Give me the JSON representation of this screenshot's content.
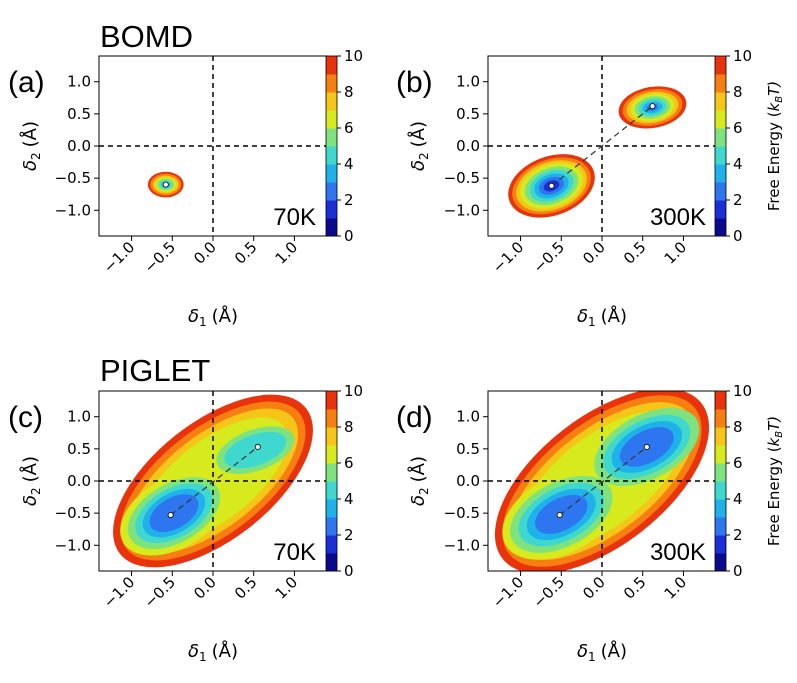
{
  "section_labels": [
    "BOMD",
    "PIGLET"
  ],
  "colorbar": {
    "label": "Free Energy (k_B T)",
    "label_main": "Free Energy (",
    "label_k": "k",
    "label_sub": "B",
    "label_T": "T)",
    "min": 0,
    "max": 10,
    "ticks": [
      "0",
      "2",
      "4",
      "6",
      "8",
      "10"
    ],
    "colors": [
      "#0a0a8e",
      "#1b2fd8",
      "#2e76f0",
      "#1fb2ea",
      "#3fd8cf",
      "#7ee37f",
      "#d6ea1e",
      "#f5c518",
      "#f77f12",
      "#e8330c",
      "#a80f0f"
    ]
  },
  "chart_data": [
    {
      "type": "heatmap",
      "panel": "(a)",
      "temperature": "70K",
      "xlabel_sym": "δ",
      "xlabel_sub": "1",
      "xlabel_unit": "(Å)",
      "ylabel_sym": "δ",
      "ylabel_sub": "2",
      "ylabel_unit": "(Å)",
      "xlim": [
        -1.4,
        1.4
      ],
      "ylim": [
        -1.4,
        1.4
      ],
      "xticks": [
        "−1.0",
        "−0.5",
        "0.0",
        "0.5",
        "1.0"
      ],
      "yticks": [
        "1.0",
        "0.5",
        "0.0",
        "−0.5",
        "−1.0"
      ],
      "minima": [
        [
          -0.58,
          -0.6
        ]
      ],
      "has_colorbar_label": false
    },
    {
      "type": "heatmap",
      "panel": "(b)",
      "temperature": "300K",
      "xlabel_sym": "δ",
      "xlabel_sub": "1",
      "xlabel_unit": "(Å)",
      "ylabel_sym": "δ",
      "ylabel_sub": "2",
      "ylabel_unit": "(Å)",
      "xlim": [
        -1.4,
        1.4
      ],
      "ylim": [
        -1.4,
        1.4
      ],
      "xticks": [
        "−1.0",
        "−0.5",
        "0.0",
        "0.5",
        "1.0"
      ],
      "yticks": [
        "1.0",
        "0.5",
        "0.0",
        "−0.5",
        "−1.0"
      ],
      "minima": [
        [
          -0.62,
          -0.62
        ],
        [
          0.62,
          0.62
        ]
      ],
      "has_colorbar_label": true
    },
    {
      "type": "heatmap",
      "panel": "(c)",
      "temperature": "70K",
      "xlabel_sym": "δ",
      "xlabel_sub": "1",
      "xlabel_unit": "(Å)",
      "ylabel_sym": "δ",
      "ylabel_sub": "2",
      "ylabel_unit": "(Å)",
      "xlim": [
        -1.4,
        1.4
      ],
      "ylim": [
        -1.4,
        1.4
      ],
      "xticks": [
        "−1.0",
        "−0.5",
        "0.0",
        "0.5",
        "1.0"
      ],
      "yticks": [
        "1.0",
        "0.5",
        "0.0",
        "−0.5",
        "−1.0"
      ],
      "minima": [
        [
          -0.52,
          -0.53
        ],
        [
          0.55,
          0.53
        ]
      ],
      "has_colorbar_label": false
    },
    {
      "type": "heatmap",
      "panel": "(d)",
      "temperature": "300K",
      "xlabel_sym": "δ",
      "xlabel_sub": "1",
      "xlabel_unit": "(Å)",
      "ylabel_sym": "δ",
      "ylabel_sub": "2",
      "ylabel_unit": "(Å)",
      "xlim": [
        -1.4,
        1.4
      ],
      "ylim": [
        -1.4,
        1.4
      ],
      "xticks": [
        "−1.0",
        "−0.5",
        "0.0",
        "0.5",
        "1.0"
      ],
      "yticks": [
        "1.0",
        "0.5",
        "0.0",
        "−0.5",
        "−1.0"
      ],
      "minima": [
        [
          -0.52,
          -0.53
        ],
        [
          0.55,
          0.53
        ]
      ],
      "has_colorbar_label": true
    }
  ]
}
